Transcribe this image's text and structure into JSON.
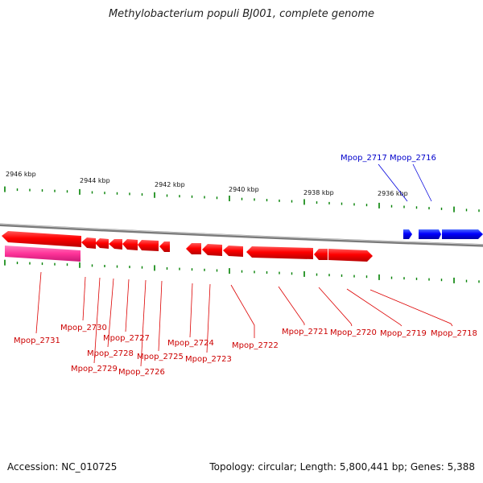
{
  "title": "Methylobacterium populi BJ001, complete genome",
  "footer": {
    "accession": "Accession: NC_010725",
    "topology": "Topology: circular; Length: 5,800,441 bp; Genes: 5,388"
  },
  "colors": {
    "reverse_strand": "#ff0000",
    "forward_strand": "#0000ff",
    "highlight": "#ff3399",
    "tick": "#008000",
    "backbone": "#808080"
  },
  "ruler": [
    {
      "label": "2946 kbp"
    },
    {
      "label": "2944 kbp"
    },
    {
      "label": "2942 kbp"
    },
    {
      "label": "2940 kbp"
    },
    {
      "label": "2938 kbp"
    },
    {
      "label": "2936 kbp"
    }
  ],
  "genes": [
    {
      "id": "Mpop_2731",
      "strand": "highlight",
      "label_color": "red"
    },
    {
      "id": "Mpop_2730",
      "strand": "reverse",
      "label_color": "red"
    },
    {
      "id": "Mpop_2729",
      "strand": "reverse",
      "label_color": "red"
    },
    {
      "id": "Mpop_2728",
      "strand": "reverse",
      "label_color": "red"
    },
    {
      "id": "Mpop_2727",
      "strand": "reverse",
      "label_color": "red"
    },
    {
      "id": "Mpop_2726",
      "strand": "reverse",
      "label_color": "red"
    },
    {
      "id": "Mpop_2725",
      "strand": "reverse",
      "label_color": "red"
    },
    {
      "id": "Mpop_2724",
      "strand": "reverse",
      "label_color": "red"
    },
    {
      "id": "Mpop_2723",
      "strand": "reverse",
      "label_color": "red"
    },
    {
      "id": "Mpop_2722",
      "strand": "reverse",
      "label_color": "red"
    },
    {
      "id": "Mpop_2721",
      "strand": "reverse",
      "label_color": "red"
    },
    {
      "id": "Mpop_2720",
      "strand": "reverse",
      "label_color": "red"
    },
    {
      "id": "Mpop_2719",
      "strand": "reverse",
      "label_color": "red"
    },
    {
      "id": "Mpop_2718",
      "strand": "reverse",
      "label_color": "red"
    },
    {
      "id": "Mpop_2717",
      "strand": "forward",
      "label_color": "blue"
    },
    {
      "id": "Mpop_2716",
      "strand": "forward",
      "label_color": "blue"
    }
  ]
}
